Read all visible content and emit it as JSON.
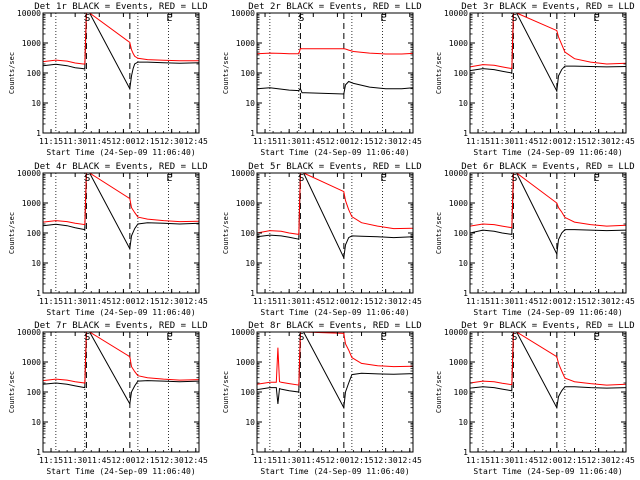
{
  "colors": {
    "events": "#000000",
    "lld": "#ff0000",
    "frame": "#000000",
    "background": "#ffffff"
  },
  "chart_data": {
    "type": "line",
    "layout": "3x3 grid",
    "y_scale": "log",
    "ylim": [
      1,
      10000
    ],
    "y_ticks": [
      "1",
      "10",
      "100",
      "1000",
      "10000"
    ],
    "ylabel": "Counts/sec",
    "x_range": [
      "11:10",
      "12:47"
    ],
    "x_ticks": [
      "11:15",
      "11:30",
      "11:45",
      "12:00",
      "12:15",
      "12:30",
      "12:45"
    ],
    "xlabel": "Start Time (24-Sep-09 11:06:40)",
    "dotted_gridlines_at": [
      "11:18",
      "11:36",
      "12:09",
      "12:28"
    ],
    "dashed_markers_at": [
      "11:37",
      "12:04"
    ],
    "marker_labels": {
      "start": "S",
      "end": "E"
    },
    "marker_label_positions": {
      "S": "11:37",
      "E": "12:28"
    },
    "panels": [
      {
        "title": "Det 1r BLACK = Events, RED = LLD",
        "x": [
          "11:10",
          "11:18",
          "11:25",
          "11:30",
          "11:35",
          "11:36",
          "11:37",
          "11:38",
          "11:39",
          "12:04",
          "12:05",
          "12:06",
          "12:07",
          "12:09",
          "12:15",
          "12:25",
          "12:35",
          "12:47"
        ],
        "series": [
          {
            "name": "BLACK = Events",
            "values": [
              175,
              195,
              175,
              150,
              140,
              135,
              10000,
              10000,
              10000,
              30,
              80,
              140,
              200,
              230,
              230,
              220,
              210,
              220
            ]
          },
          {
            "name": "RED = LLD",
            "values": [
              240,
              270,
              250,
              215,
              200,
              200,
              10000,
              10000,
              10000,
              1050,
              600,
              450,
              360,
              310,
              280,
              265,
              255,
              255
            ]
          }
        ]
      },
      {
        "title": "Det 2r BLACK = Events, RED = LLD",
        "x": [
          "11:10",
          "11:18",
          "11:25",
          "11:30",
          "11:36",
          "11:37",
          "11:38",
          "11:40",
          "12:04",
          "12:05",
          "12:07",
          "12:10",
          "12:20",
          "12:30",
          "12:40",
          "12:47"
        ],
        "series": [
          {
            "name": "BLACK = Events",
            "values": [
              30,
              32,
              29,
              27,
              26,
              30,
              22,
              22,
              20,
              40,
              52,
              45,
              34,
              30,
              30,
              32
            ]
          },
          {
            "name": "RED = LLD",
            "values": [
              440,
              460,
              450,
              440,
              440,
              650,
              640,
              640,
              640,
              630,
              580,
              520,
              460,
              430,
              430,
              450
            ]
          }
        ]
      },
      {
        "title": "Det 3r BLACK = Events, RED = LLD",
        "x": [
          "11:10",
          "11:18",
          "11:25",
          "11:30",
          "11:36",
          "11:37",
          "11:38",
          "11:39",
          "12:04",
          "12:05",
          "12:07",
          "12:09",
          "12:15",
          "12:25",
          "12:35",
          "12:47"
        ],
        "series": [
          {
            "name": "BLACK = Events",
            "values": [
              120,
              140,
              130,
              115,
              100,
              10000,
              10000,
              10000,
              25,
              80,
              130,
              170,
              170,
              165,
              160,
              165
            ]
          },
          {
            "name": "RED = LLD",
            "values": [
              160,
              190,
              180,
              160,
              140,
              10000,
              10000,
              10000,
              2600,
              1600,
              900,
              500,
              300,
              230,
              200,
              210
            ]
          }
        ]
      },
      {
        "title": "Det 4r BLACK = Events, RED = LLD",
        "x": [
          "11:10",
          "11:18",
          "11:25",
          "11:30",
          "11:36",
          "11:37",
          "11:38",
          "11:39",
          "12:04",
          "12:05",
          "12:07",
          "12:09",
          "12:15",
          "12:25",
          "12:35",
          "12:47"
        ],
        "series": [
          {
            "name": "BLACK = Events",
            "values": [
              175,
              195,
              175,
              150,
              130,
              10000,
              10000,
              10000,
              30,
              80,
              140,
              200,
              220,
              210,
              200,
              210
            ]
          },
          {
            "name": "RED = LLD",
            "values": [
              230,
              260,
              240,
              210,
              190,
              10000,
              10000,
              10000,
              1400,
              700,
              480,
              340,
              290,
              260,
              240,
              245
            ]
          }
        ]
      },
      {
        "title": "Det 5r BLACK = Events, RED = LLD",
        "x": [
          "11:10",
          "11:18",
          "11:25",
          "11:30",
          "11:36",
          "11:37",
          "11:38",
          "11:39",
          "12:04",
          "12:05",
          "12:07",
          "12:09",
          "12:15",
          "12:25",
          "12:35",
          "12:47"
        ],
        "series": [
          {
            "name": "BLACK = Events",
            "values": [
              75,
              85,
              80,
              72,
              62,
              10000,
              10000,
              10000,
              15,
              40,
              70,
              80,
              78,
              75,
              70,
              75
            ]
          },
          {
            "name": "RED = LLD",
            "values": [
              100,
              120,
              115,
              100,
              90,
              10000,
              10000,
              10000,
              2400,
              1200,
              600,
              350,
              220,
              170,
              140,
              145
            ]
          }
        ]
      },
      {
        "title": "Det 6r BLACK = Events, RED = LLD",
        "x": [
          "11:10",
          "11:18",
          "11:25",
          "11:30",
          "11:36",
          "11:37",
          "11:38",
          "11:39",
          "12:04",
          "12:05",
          "12:07",
          "12:09",
          "12:15",
          "12:25",
          "12:35",
          "12:47"
        ],
        "series": [
          {
            "name": "BLACK = Events",
            "values": [
              100,
              125,
              115,
              100,
              90,
              10000,
              10000,
              10000,
              20,
              60,
              100,
              130,
              130,
              125,
              120,
              125
            ]
          },
          {
            "name": "RED = LLD",
            "values": [
              170,
              200,
              190,
              170,
              150,
              10000,
              10000,
              10000,
              1000,
              700,
              500,
              330,
              230,
              190,
              170,
              180
            ]
          }
        ]
      },
      {
        "title": "Det 7r BLACK = Events, RED = LLD",
        "x": [
          "11:10",
          "11:18",
          "11:25",
          "11:30",
          "11:36",
          "11:37",
          "11:38",
          "11:39",
          "12:04",
          "12:05",
          "12:07",
          "12:09",
          "12:15",
          "12:25",
          "12:35",
          "12:47"
        ],
        "series": [
          {
            "name": "BLACK = Events",
            "values": [
              180,
              200,
              180,
              160,
              140,
              10000,
              10000,
              10000,
              40,
              100,
              160,
              230,
              240,
              230,
              220,
              230
            ]
          },
          {
            "name": "RED = LLD",
            "values": [
              240,
              270,
              250,
              220,
              200,
              10000,
              10000,
              10000,
              1500,
              700,
              480,
              350,
              300,
              270,
              250,
              260
            ]
          }
        ]
      },
      {
        "title": "Det 8r BLACK = Events, RED = LLD",
        "x": [
          "11:10",
          "11:18",
          "11:22",
          "11:23",
          "11:24",
          "11:25",
          "11:30",
          "11:36",
          "11:37",
          "11:38",
          "11:39",
          "12:04",
          "12:05",
          "12:07",
          "12:09",
          "12:15",
          "12:25",
          "12:35",
          "12:47"
        ],
        "series": [
          {
            "name": "BLACK = Events",
            "values": [
              120,
              140,
              140,
              40,
              130,
              125,
              110,
              100,
              10000,
              10000,
              10000,
              30,
              100,
              200,
              380,
              420,
              400,
              390,
              410
            ]
          },
          {
            "name": "RED = LLD",
            "values": [
              180,
              210,
              210,
              3000,
              220,
              210,
              190,
              170,
              10000,
              10000,
              10000,
              9000,
              4000,
              2500,
              1400,
              900,
              750,
              700,
              720
            ]
          }
        ]
      },
      {
        "title": "Det 9r BLACK = Events, RED = LLD",
        "x": [
          "11:10",
          "11:18",
          "11:25",
          "11:30",
          "11:36",
          "11:37",
          "11:38",
          "11:39",
          "12:04",
          "12:05",
          "12:07",
          "12:09",
          "12:15",
          "12:25",
          "12:35",
          "12:47"
        ],
        "series": [
          {
            "name": "BLACK = Events",
            "values": [
              135,
              150,
              140,
              125,
              110,
              10000,
              10000,
              10000,
              30,
              70,
              110,
              150,
              150,
              140,
              135,
              140
            ]
          },
          {
            "name": "RED = LLD",
            "values": [
              200,
              230,
              220,
              195,
              175,
              10000,
              10000,
              10000,
              1500,
              900,
              500,
              290,
              220,
              190,
              170,
              180
            ]
          }
        ]
      }
    ]
  }
}
